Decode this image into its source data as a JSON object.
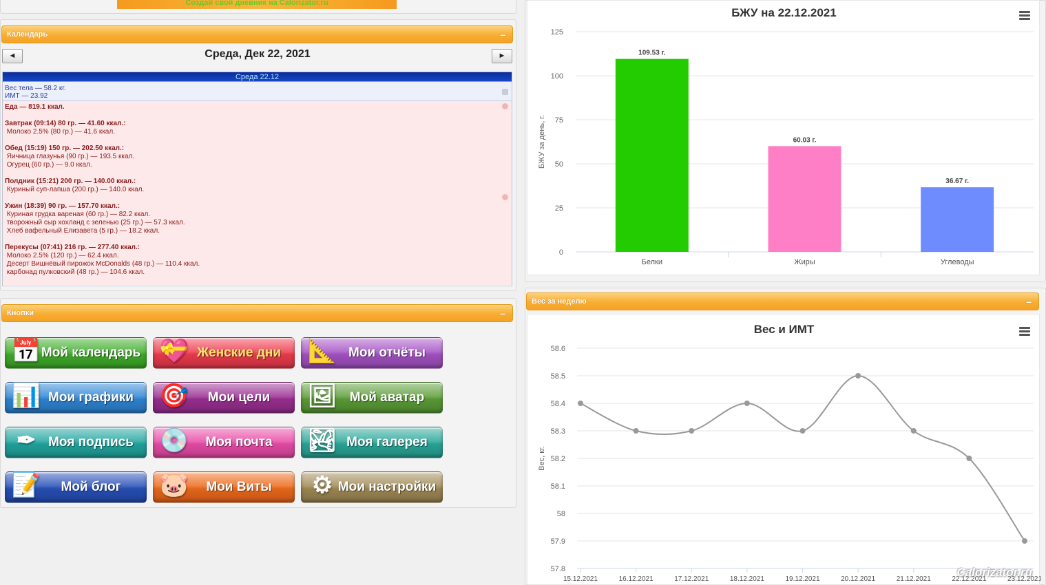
{
  "banner": {
    "text": "Создай свой дневник на Calorizator.ru"
  },
  "calendar": {
    "panel_title": "Календарь",
    "minimize_label": "–",
    "prev_label": "◄",
    "next_label": "►",
    "date_title": "Среда, Дек 22, 2021",
    "day_header": "Среда 22.12",
    "weight_line": "Вес тела — 58.2 кг.",
    "bmi_line": "ИМТ — 23.92",
    "food_lines": [
      {
        "text": "Еда — 819.1 ккал.",
        "bold": true
      },
      {
        "text": "",
        "bold": false
      },
      {
        "text": "Завтрак (09:14) 80 гр. — 41.60 ккал.:",
        "bold": true
      },
      {
        "text": " Молоко 2.5% (80 гр.) — 41.6 ккал.",
        "bold": false
      },
      {
        "text": "",
        "bold": false
      },
      {
        "text": "Обед (15:19) 150 гр. — 202.50 ккал.:",
        "bold": true
      },
      {
        "text": " Яичница глазунья (90 гр.) — 193.5 ккал.",
        "bold": false
      },
      {
        "text": " Огурец (60 гр.) — 9.0 ккал.",
        "bold": false
      },
      {
        "text": "",
        "bold": false
      },
      {
        "text": "Полдник (15:21) 200 гр. — 140.00 ккал.:",
        "bold": true
      },
      {
        "text": " Куриный суп-лапша (200 гр.) — 140.0 ккал.",
        "bold": false
      },
      {
        "text": "",
        "bold": false
      },
      {
        "text": "Ужин (18:39) 90 гр. — 157.70 ккал.:",
        "bold": true
      },
      {
        "text": " Куриная грудка вареная (60 гр.) — 82.2 ккал.",
        "bold": false
      },
      {
        "text": " творожный сыр хохланд с зеленью (25 гр.) — 57.3 ккал.",
        "bold": false
      },
      {
        "text": " Хлеб вафельный Елизавета (5 гр.) — 18.2 ккал.",
        "bold": false
      },
      {
        "text": "",
        "bold": false
      },
      {
        "text": "Перекусы (07:41) 216 гр. — 277.40 ккал.:",
        "bold": true
      },
      {
        "text": " Молоко 2.5% (120 гр.) — 62.4 ккал.",
        "bold": false
      },
      {
        "text": " Десерт Вишнёвый пирожок McDonalds (48 гр.) — 110.4 ккал.",
        "bold": false
      },
      {
        "text": " карбонад пулковский (48 гр.) — 104.6 ккал.",
        "bold": false
      }
    ]
  },
  "buttons_panel": {
    "title": "Кнопки",
    "minimize_label": "–",
    "items": [
      {
        "name": "my-calendar",
        "label": "Мой календарь",
        "icon": "calendar-icon",
        "glyph": "📅",
        "color": "#3fae2a"
      },
      {
        "name": "womens-days",
        "label": "Женские дни",
        "icon": "hearts-calendar-icon",
        "glyph": "💝",
        "color": "#ee3b4d",
        "text_color": "#ffe46b"
      },
      {
        "name": "my-reports",
        "label": "Мои отчёты",
        "icon": "drafting-tools-icon",
        "glyph": "📐",
        "color": "#a552c4"
      },
      {
        "name": "my-charts",
        "label": "Мои графики",
        "icon": "bar-chart-icon",
        "glyph": "📊",
        "color": "#2f86d6"
      },
      {
        "name": "my-goals",
        "label": "Мои цели",
        "icon": "target-darts-icon",
        "glyph": "🎯",
        "color": "#9b2f93"
      },
      {
        "name": "my-avatar",
        "label": "Мой аватар",
        "icon": "avatar-portrait-icon",
        "glyph": "🖼",
        "color": "#5c9e38"
      },
      {
        "name": "my-signature",
        "label": "Моя подпись",
        "icon": "pen-inkwell-icon",
        "glyph": "✒",
        "color": "#22a6a0"
      },
      {
        "name": "my-mail",
        "label": "Моя почта",
        "icon": "mail-disc-icon",
        "glyph": "💿",
        "color": "#e94ca8"
      },
      {
        "name": "my-gallery",
        "label": "Моя галерея",
        "icon": "gallery-photo-icon",
        "glyph": "🏞",
        "color": "#2aa89a"
      },
      {
        "name": "my-blog",
        "label": "Мой блог",
        "icon": "notepad-pen-icon",
        "glyph": "📝",
        "color": "#2750b8"
      },
      {
        "name": "my-vitas",
        "label": "Мои Виты",
        "icon": "piggy-bank-icon",
        "glyph": "🐷",
        "color": "#ee6a1c"
      },
      {
        "name": "my-settings",
        "label": "Мои настройки",
        "icon": "gears-icon",
        "glyph": "⚙",
        "color": "#a08a55"
      }
    ]
  },
  "bzhu_chart_card": {
    "menu_icon": "hamburger-menu-icon"
  },
  "weight_panel": {
    "title": "Вес за неделю",
    "minimize_label": "–",
    "menu_icon": "hamburger-menu-icon"
  },
  "watermark": "Calorizator.ru",
  "chart_data": [
    {
      "type": "bar",
      "title": "БЖУ на 22.12.2021",
      "categories": [
        "Белки",
        "Жиры",
        "Углеводы"
      ],
      "values": [
        109.53,
        60.03,
        36.67
      ],
      "data_labels": [
        "109.53 г.",
        "60.03 г.",
        "36.67 г."
      ],
      "colors": [
        "#22cc00",
        "#ff7fc6",
        "#6f8cff"
      ],
      "ylabel": "БЖУ за день, г.",
      "xlabel": "",
      "ylim": [
        0,
        125
      ],
      "yticks": [
        0,
        25,
        50,
        75,
        100,
        125
      ],
      "grid": true
    },
    {
      "type": "line",
      "title": "Вес и ИМТ",
      "x": [
        "15.12.2021",
        "16.12.2021",
        "17.12.2021",
        "18.12.2021",
        "19.12.2021",
        "20.12.2021",
        "21.12.2021",
        "22.12.2021",
        "23.12.2021"
      ],
      "series": [
        {
          "values": [
            58.4,
            58.3,
            58.3,
            58.4,
            58.3,
            58.5,
            58.3,
            58.2,
            57.9
          ],
          "color": "#999999"
        }
      ],
      "ylabel": "Вес, кг.",
      "xlabel": "",
      "ylim": [
        57.8,
        58.6
      ],
      "yticks": [
        "57.8",
        "57.9",
        "58",
        "58.1",
        "58.2",
        "58.3",
        "58.4",
        "58.5",
        "58.6"
      ],
      "grid": true
    }
  ]
}
